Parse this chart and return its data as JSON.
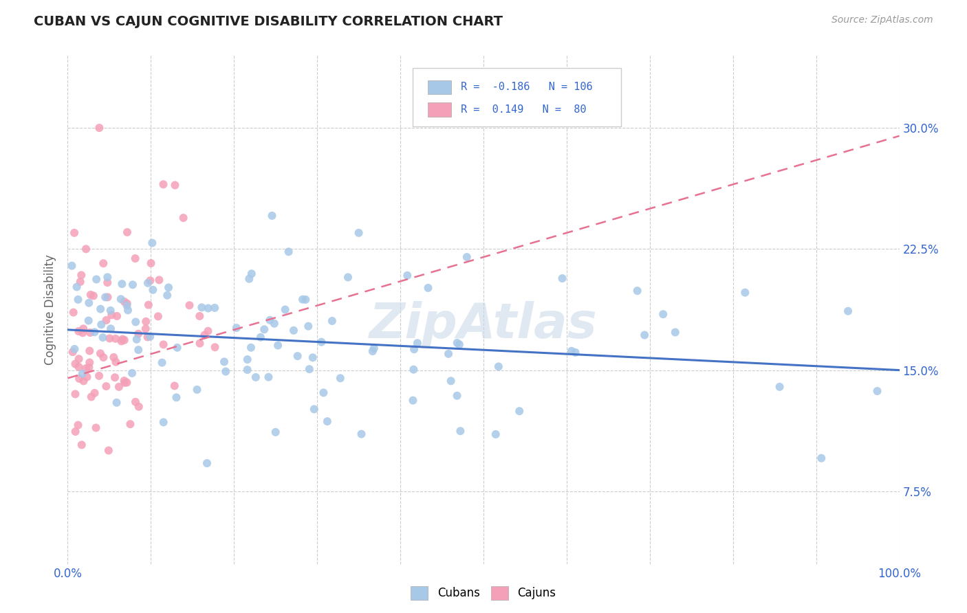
{
  "title": "CUBAN VS CAJUN COGNITIVE DISABILITY CORRELATION CHART",
  "source": "Source: ZipAtlas.com",
  "ylabel": "Cognitive Disability",
  "ytick_labels": [
    "7.5%",
    "15.0%",
    "22.5%",
    "30.0%"
  ],
  "ytick_values": [
    0.075,
    0.15,
    0.225,
    0.3
  ],
  "xlim": [
    0.0,
    1.0
  ],
  "ylim": [
    0.03,
    0.345
  ],
  "cubans_R": -0.186,
  "cubans_N": 106,
  "cajuns_R": 0.149,
  "cajuns_N": 80,
  "cuban_color": "#a8c8e8",
  "cajun_color": "#f4a0b8",
  "cuban_line_color": "#4472c4",
  "cajun_line_color": "#e87090",
  "legend_label_cubans": "Cubans",
  "legend_label_cajuns": "Cajuns",
  "cuban_line_x0": 0.0,
  "cuban_line_x1": 1.0,
  "cuban_line_y0": 0.175,
  "cuban_line_y1": 0.15,
  "cajun_line_x0": 0.0,
  "cajun_line_x1": 1.0,
  "cajun_line_y0": 0.145,
  "cajun_line_y1": 0.295
}
